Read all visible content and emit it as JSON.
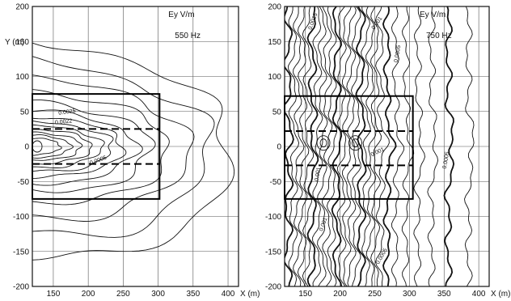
{
  "chart_data": [
    {
      "type": "contour",
      "field_label": "Ey  V/m",
      "frequency_label": "550 Hz",
      "ylabel": "Y (m)",
      "xlabel": "",
      "xlim": [
        120,
        415
      ],
      "ylim": [
        -200,
        200
      ],
      "x_ticks": [
        "150",
        "200",
        "250",
        "300",
        "350",
        "400"
      ],
      "y_ticks": [
        "200",
        "150",
        "100",
        "50",
        "0",
        "-50",
        "-100",
        "-150",
        "-200"
      ],
      "grid": true,
      "contour_labels": [
        "0.0025",
        "0.0022",
        "0.0005"
      ],
      "outer_rect": {
        "x": [
          120,
          302
        ],
        "y": [
          -75,
          75
        ]
      },
      "dashed_lines_y": [
        25,
        -25
      ],
      "contours": [
        {
          "rx": 40,
          "ry": 12,
          "bold": false
        },
        {
          "rx": 55,
          "ry": 16,
          "bold": false
        },
        {
          "rx": 70,
          "ry": 20,
          "bold": false
        },
        {
          "rx": 85,
          "ry": 25,
          "bold": false
        },
        {
          "rx": 100,
          "ry": 30,
          "bold": false
        },
        {
          "rx": 115,
          "ry": 36,
          "bold": false
        },
        {
          "rx": 130,
          "ry": 43,
          "bold": false
        },
        {
          "rx": 148,
          "ry": 52,
          "bold": false
        },
        {
          "rx": 170,
          "ry": 64,
          "bold": false
        },
        {
          "rx": 195,
          "ry": 80,
          "bold": false
        },
        {
          "rx": 225,
          "ry": 100,
          "bold": false
        },
        {
          "rx": 255,
          "ry": 125,
          "bold": false
        },
        {
          "rx": 285,
          "ry": 155,
          "bold": false
        }
      ],
      "center": [
        120,
        0
      ]
    },
    {
      "type": "contour",
      "field_label": "Ey  V/m",
      "frequency_label": "750 Hz",
      "ylabel": "",
      "xlabel": "X (m)",
      "xlim": [
        120,
        415
      ],
      "ylim": [
        -200,
        200
      ],
      "x_ticks": [
        "150",
        "200",
        "250",
        "300",
        "350",
        "400"
      ],
      "y_ticks": [
        "200",
        "150",
        "100",
        "50",
        "0",
        "-50",
        "-100",
        "-150",
        "-200"
      ],
      "grid": true,
      "contour_labels": [
        "0.0015",
        "0.001",
        "0.0005",
        "0.001",
        "0.001",
        "0.001",
        "0.0005",
        "0.0005"
      ],
      "outer_rect": {
        "x": [
          120,
          305
        ],
        "y": [
          -75,
          72
        ]
      },
      "dashed_lines_y": [
        22,
        -27
      ],
      "wavy_x": [
        125,
        132,
        139,
        146,
        153,
        160,
        167,
        174,
        181,
        188,
        195,
        202,
        209,
        216,
        223,
        230,
        237,
        244,
        251,
        258,
        268,
        280,
        295,
        312,
        332,
        356,
        385
      ],
      "bold_every": 5,
      "small_loops": [
        [
          176,
          5
        ],
        [
          222,
          5
        ]
      ]
    }
  ]
}
